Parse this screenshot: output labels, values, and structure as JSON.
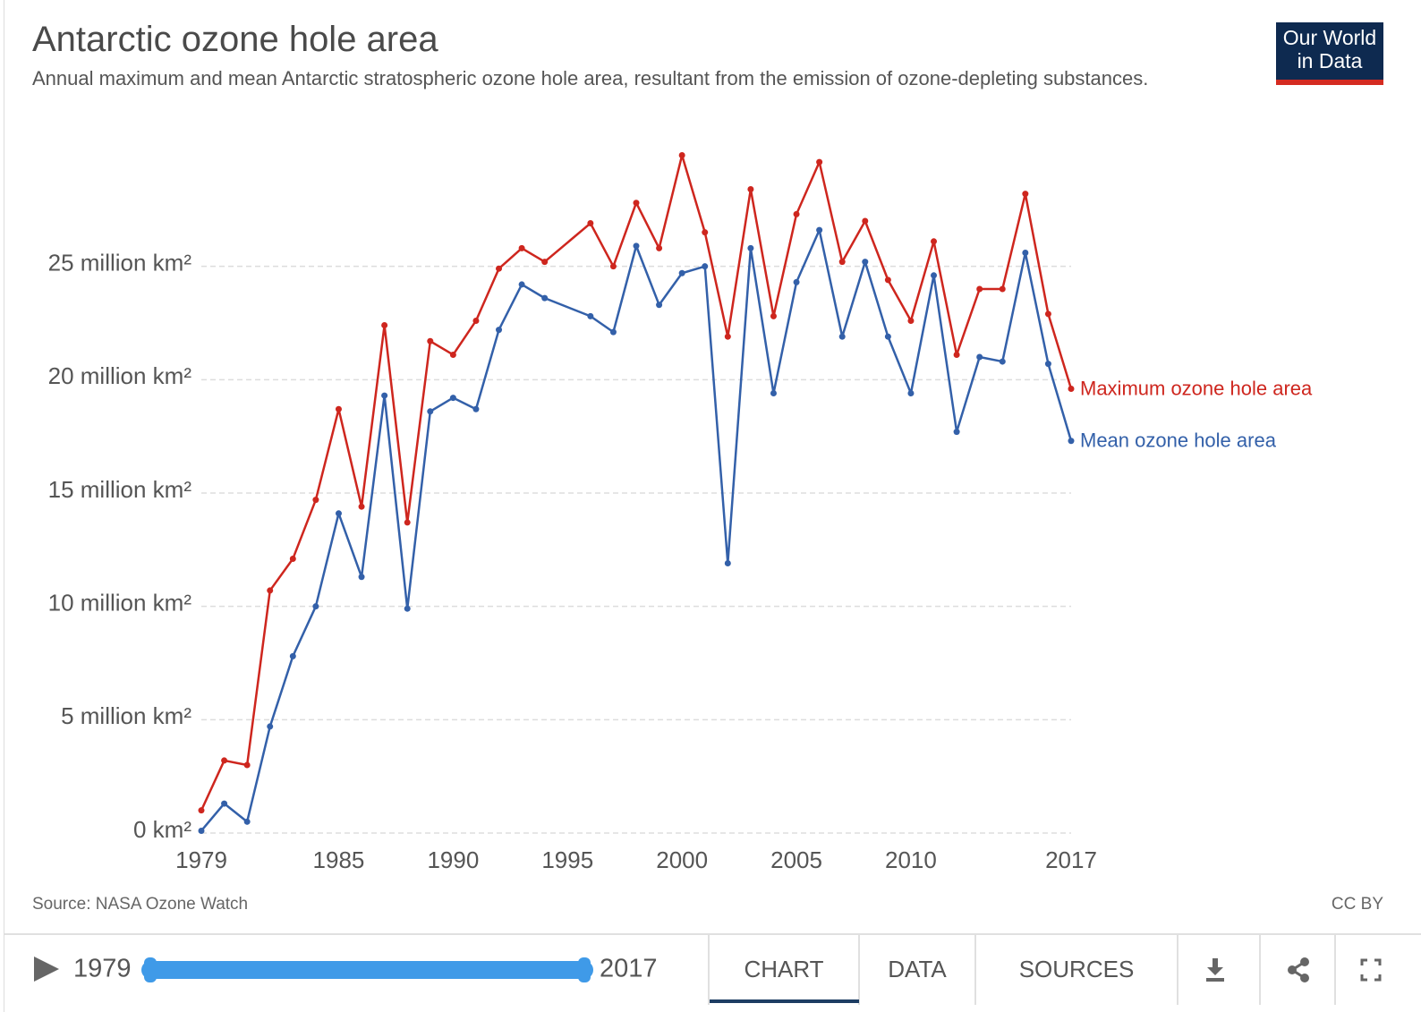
{
  "chart_data": {
    "type": "line",
    "title": "Antarctic ozone hole area",
    "subtitle": "Annual maximum and mean Antarctic stratospheric ozone hole area, resultant from the emission of ozone-depleting substances.",
    "x": [
      1979,
      1980,
      1981,
      1982,
      1983,
      1984,
      1985,
      1986,
      1987,
      1988,
      1989,
      1990,
      1991,
      1992,
      1993,
      1994,
      1996,
      1997,
      1998,
      1999,
      2000,
      2001,
      2002,
      2003,
      2004,
      2005,
      2006,
      2007,
      2008,
      2009,
      2010,
      2011,
      2012,
      2013,
      2014,
      2015,
      2016,
      2017
    ],
    "series": [
      {
        "name": "Maximum ozone hole area",
        "color": "#ce261e",
        "values": [
          1.0,
          3.2,
          3.0,
          10.7,
          12.1,
          14.7,
          18.7,
          14.4,
          22.4,
          13.7,
          21.7,
          21.1,
          22.6,
          24.9,
          25.8,
          25.2,
          26.9,
          25.0,
          27.8,
          25.8,
          29.9,
          26.5,
          21.9,
          28.4,
          22.8,
          27.3,
          29.6,
          25.2,
          27.0,
          24.4,
          22.6,
          26.1,
          21.1,
          24.0,
          24.0,
          28.2,
          22.9,
          19.6
        ]
      },
      {
        "name": "Mean ozone hole area",
        "color": "#3360a9",
        "values": [
          0.1,
          1.3,
          0.5,
          4.7,
          7.8,
          10.0,
          14.1,
          11.3,
          19.3,
          9.9,
          18.6,
          19.2,
          18.7,
          22.2,
          24.2,
          23.6,
          22.8,
          22.1,
          25.9,
          23.3,
          24.7,
          25.0,
          11.9,
          25.8,
          19.4,
          24.3,
          26.6,
          21.9,
          25.2,
          21.9,
          19.4,
          24.6,
          17.7,
          21.0,
          20.8,
          25.6,
          20.7,
          17.3
        ]
      }
    ],
    "xlim": [
      1979,
      2017
    ],
    "xticks": [
      1979,
      1985,
      1990,
      1995,
      2000,
      2005,
      2010,
      2017
    ],
    "ylim": [
      0,
      30
    ],
    "yticks": [
      {
        "value": 0,
        "label": "0 km²"
      },
      {
        "value": 5,
        "label": "5 million km²"
      },
      {
        "value": 10,
        "label": "10 million km²"
      },
      {
        "value": 15,
        "label": "15 million km²"
      },
      {
        "value": 20,
        "label": "20 million km²"
      },
      {
        "value": 25,
        "label": "25 million km²"
      }
    ],
    "grid": true,
    "source": "Source: NASA Ozone Watch",
    "license": "CC BY"
  },
  "logo": {
    "line1": "Our World",
    "line2": "in Data"
  },
  "controls": {
    "start": "1979",
    "end": "2017",
    "tabs": [
      "CHART",
      "DATA",
      "SOURCES"
    ]
  }
}
